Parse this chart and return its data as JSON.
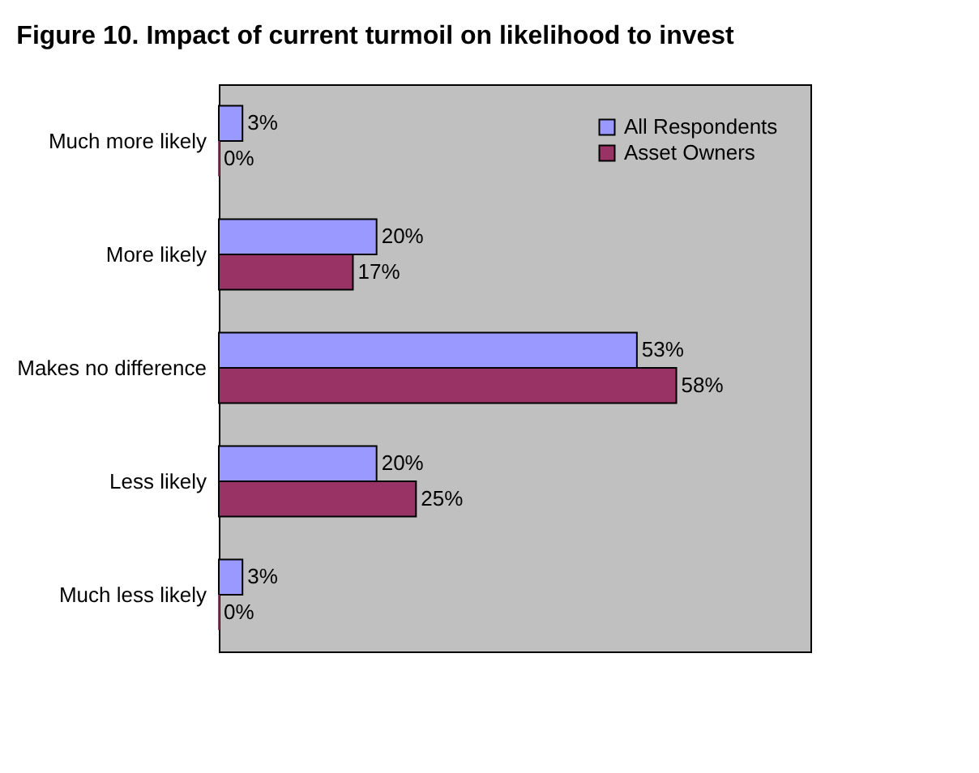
{
  "chart_data": {
    "type": "bar",
    "orientation": "horizontal",
    "title": "Figure 10. Impact of current turmoil on likelihood to invest",
    "categories": [
      "Much more likely",
      "More likely",
      "Makes no difference",
      "Less likely",
      "Much less likely"
    ],
    "series": [
      {
        "name": "All Respondents",
        "color": "#9999ff",
        "values": [
          3,
          20,
          53,
          20,
          3
        ],
        "value_labels": [
          "3%",
          "20%",
          "53%",
          "20%",
          "3%"
        ]
      },
      {
        "name": "Asset Owners",
        "color": "#993366",
        "values": [
          0,
          17,
          58,
          25,
          0
        ],
        "value_labels": [
          "0%",
          "17%",
          "58%",
          "25%",
          "0%"
        ]
      }
    ],
    "xlim": [
      0,
      75
    ],
    "tick_labels": "y",
    "legend": "top right"
  }
}
